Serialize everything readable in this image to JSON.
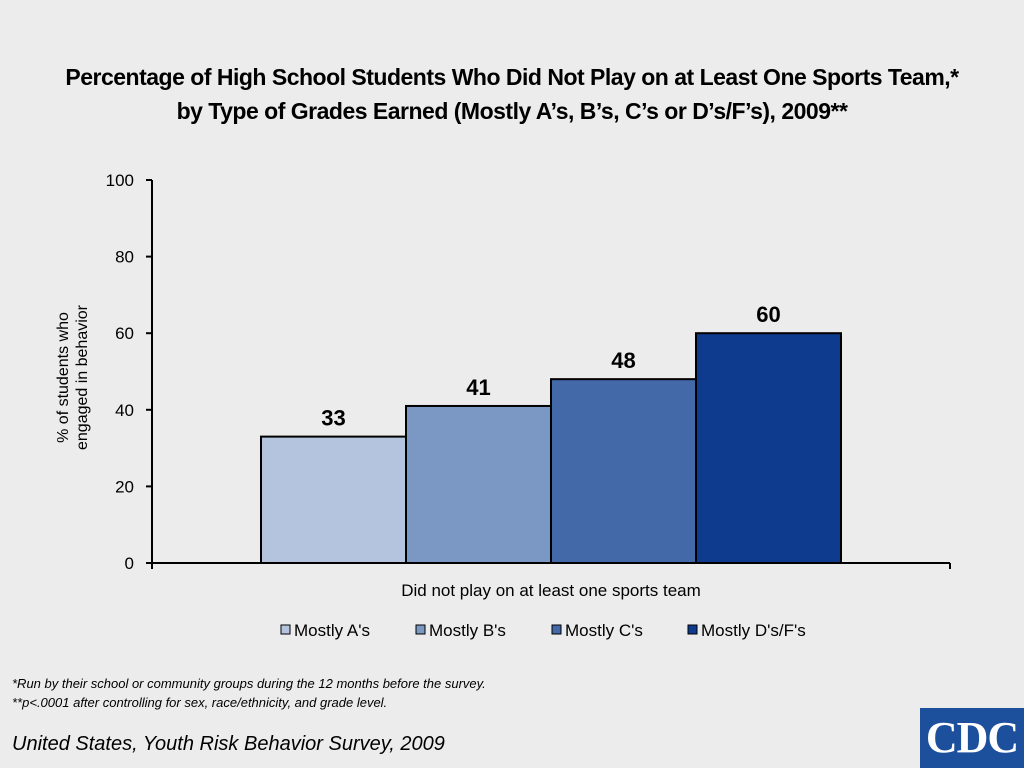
{
  "title": {
    "line1": "Percentage of High School Students Who Did Not Play on at Least One Sports Team,*",
    "line2": "by Type of Grades Earned (Mostly A’s, B’s, C’s or D’s/F’s), 2009**"
  },
  "footnotes": [
    "*Run by their school or community groups during the 12 months before the survey.",
    "**p<.0001 after controlling for sex, race/ethnicity, and grade level."
  ],
  "source": "United States, Youth Risk Behavior Survey, 2009",
  "logo": {
    "text": "CDC",
    "color": "#1c4f9c"
  },
  "chart_data": {
    "type": "bar",
    "title": "Percentage of High School Students Who Did Not Play on at Least One Sports Team,* by Type of Grades Earned (Mostly A’s, B’s, C’s or D’s/F’s), 2009**",
    "categories": [
      "Did not play on at least one sports team"
    ],
    "xlabel": "Did not play on at least one sports team",
    "ylabel_lines": [
      "% of students who",
      "engaged in behavior"
    ],
    "ylim": [
      0,
      100
    ],
    "yticks": [
      0,
      20,
      40,
      60,
      80,
      100
    ],
    "grid": false,
    "legend_position": "bottom",
    "series": [
      {
        "name": "Mostly A's",
        "values": [
          33
        ],
        "label": "33",
        "color": "#b4c3de"
      },
      {
        "name": "Mostly B's",
        "values": [
          41
        ],
        "label": "41",
        "color": "#7b98c4"
      },
      {
        "name": "Mostly C's",
        "values": [
          48
        ],
        "label": "48",
        "color": "#4369a8"
      },
      {
        "name": "Mostly D's/F's",
        "values": [
          60
        ],
        "label": "60",
        "color": "#0f3b8f"
      }
    ]
  }
}
